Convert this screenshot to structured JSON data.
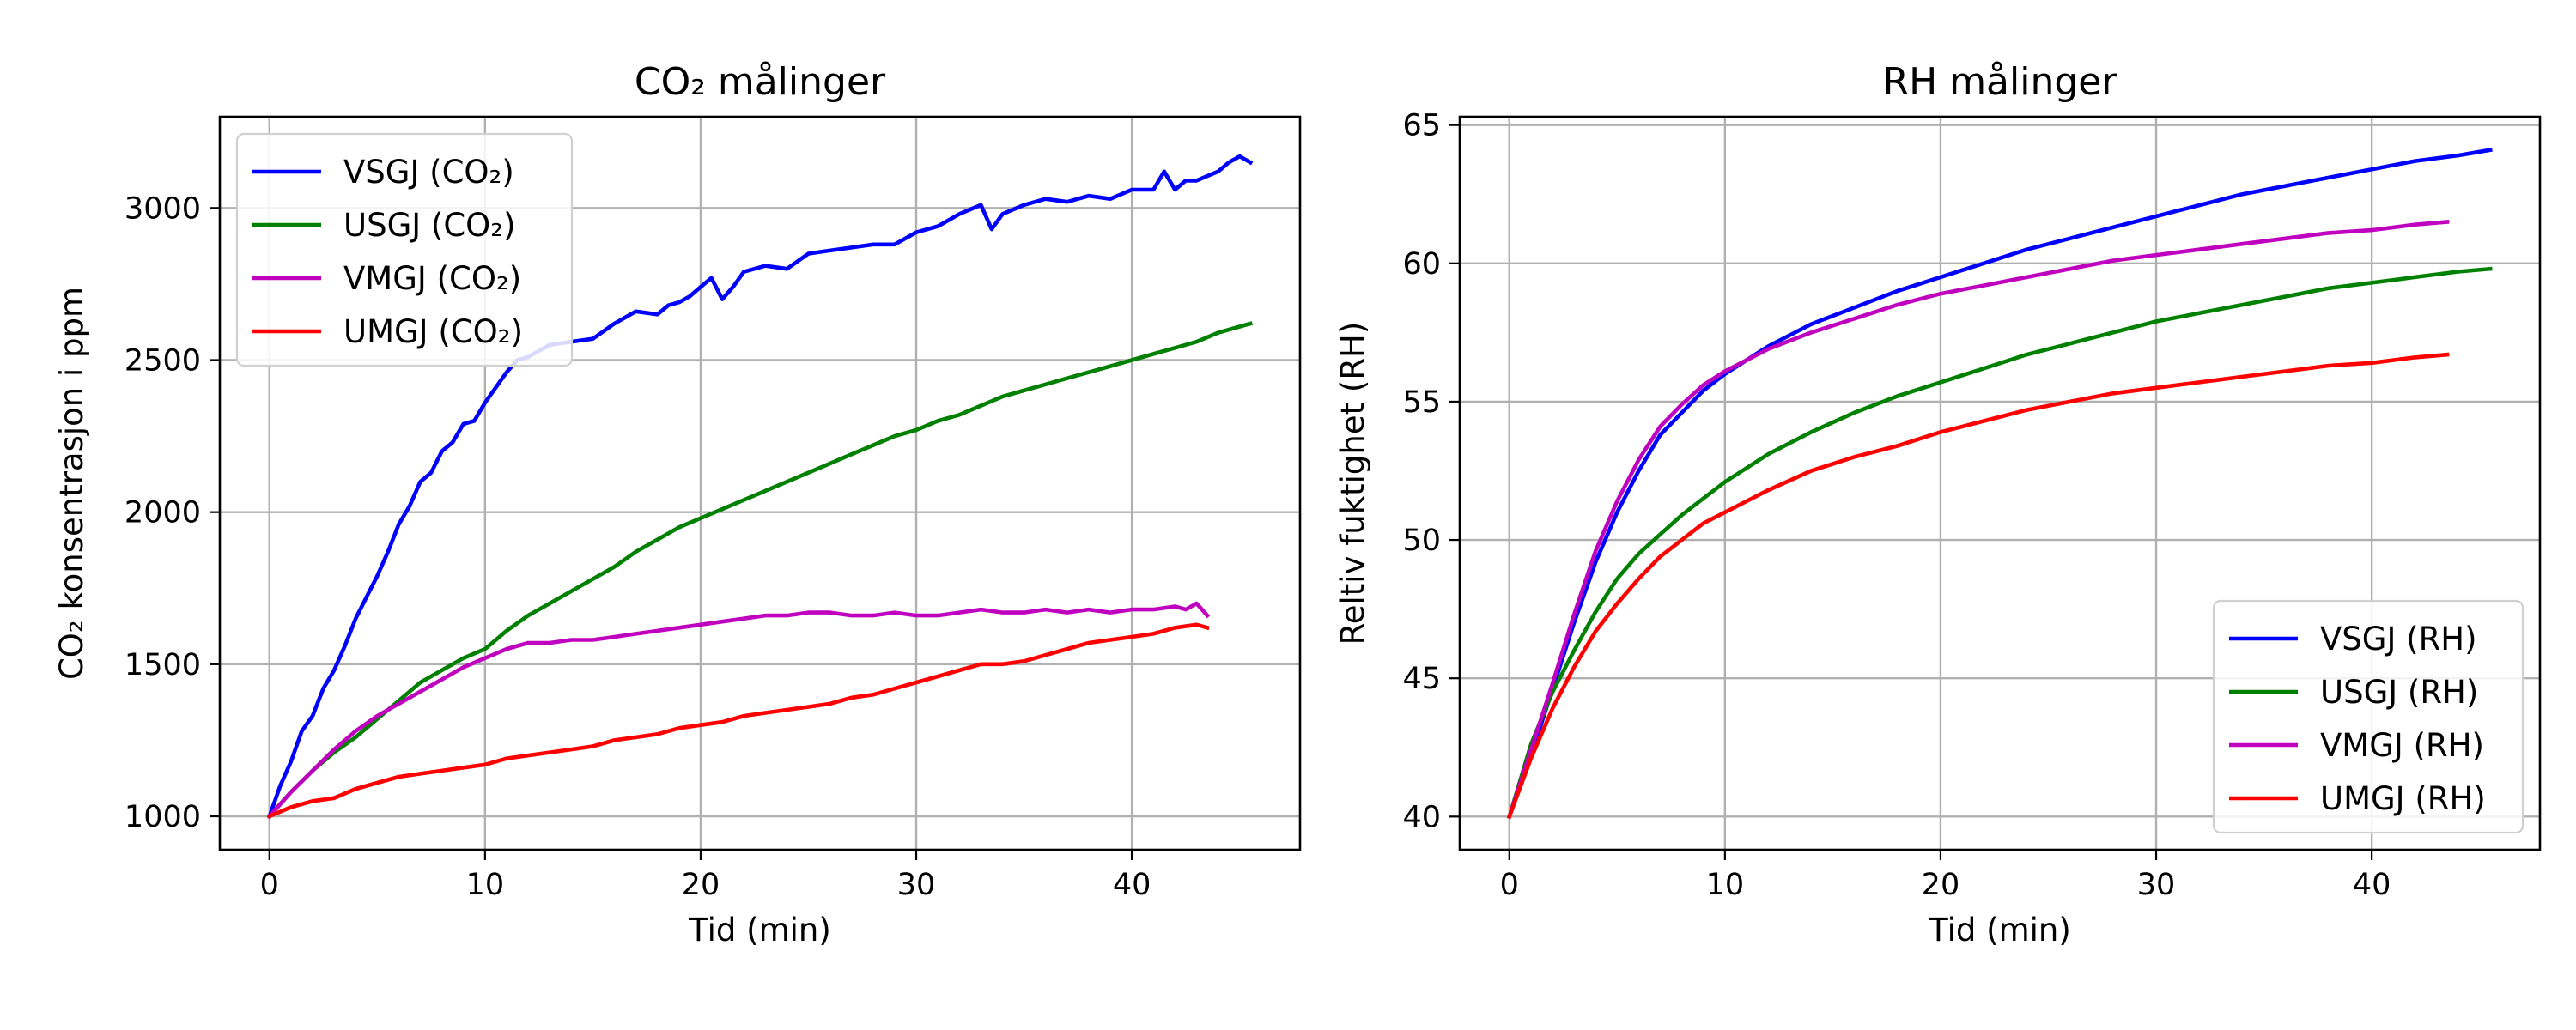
{
  "chart_data": [
    {
      "type": "line",
      "title": "CO₂ målinger",
      "xlabel": "Tid (min)",
      "ylabel": "CO₂ konsentrasjon i ppm",
      "xlim": [
        -2.3,
        47.8
      ],
      "ylim": [
        890,
        3300
      ],
      "xticks": [
        0,
        10,
        20,
        30,
        40
      ],
      "yticks": [
        1000,
        1500,
        2000,
        2500,
        3000
      ],
      "xtick_labels": [
        "0",
        "10",
        "20",
        "30",
        "40"
      ],
      "ytick_labels": [
        "1000",
        "1500",
        "2000",
        "2500",
        "3000"
      ],
      "grid": true,
      "legend": {
        "position": "upper left"
      },
      "series": [
        {
          "name": "VSGJ (CO₂)",
          "color": "#0000ff",
          "x": [
            0,
            0.5,
            1,
            1.5,
            2,
            2.5,
            3,
            3.5,
            4,
            4.5,
            5,
            5.5,
            6,
            6.5,
            7,
            7.5,
            8,
            8.5,
            9,
            9.5,
            10,
            10.5,
            11,
            11.5,
            12,
            12.5,
            13,
            14,
            15,
            16,
            17,
            18,
            18.5,
            19,
            19.5,
            20,
            20.5,
            21,
            21.5,
            22,
            23,
            24,
            25,
            26,
            27,
            28,
            29,
            30,
            31,
            32,
            33,
            33.5,
            34,
            35,
            36,
            37,
            38,
            39,
            40,
            41,
            41.5,
            42,
            42.5,
            43,
            44,
            44.5,
            45,
            45.5
          ],
          "y": [
            1000,
            1100,
            1180,
            1280,
            1330,
            1420,
            1480,
            1560,
            1650,
            1720,
            1790,
            1870,
            1960,
            2020,
            2100,
            2130,
            2200,
            2230,
            2290,
            2300,
            2360,
            2410,
            2460,
            2500,
            2510,
            2530,
            2550,
            2560,
            2570,
            2620,
            2660,
            2650,
            2680,
            2690,
            2710,
            2740,
            2770,
            2700,
            2740,
            2790,
            2810,
            2800,
            2850,
            2860,
            2870,
            2880,
            2880,
            2920,
            2940,
            2980,
            3010,
            2930,
            2980,
            3010,
            3030,
            3020,
            3040,
            3030,
            3060,
            3060,
            3120,
            3060,
            3090,
            3090,
            3120,
            3150,
            3170,
            3150
          ]
        },
        {
          "name": "USGJ (CO₂)",
          "color": "#008000",
          "x": [
            0,
            1,
            2,
            3,
            4,
            5,
            6,
            7,
            8,
            9,
            10,
            11,
            12,
            13,
            14,
            15,
            16,
            17,
            18,
            19,
            20,
            21,
            22,
            23,
            24,
            25,
            26,
            27,
            28,
            29,
            30,
            31,
            32,
            33,
            34,
            35,
            36,
            37,
            38,
            39,
            40,
            41,
            42,
            43,
            44,
            45,
            45.5
          ],
          "y": [
            1000,
            1080,
            1150,
            1210,
            1260,
            1320,
            1380,
            1440,
            1480,
            1520,
            1550,
            1610,
            1660,
            1700,
            1740,
            1780,
            1820,
            1870,
            1910,
            1950,
            1980,
            2010,
            2040,
            2070,
            2100,
            2130,
            2160,
            2190,
            2220,
            2250,
            2270,
            2300,
            2320,
            2350,
            2380,
            2400,
            2420,
            2440,
            2460,
            2480,
            2500,
            2520,
            2540,
            2560,
            2590,
            2610,
            2620
          ]
        },
        {
          "name": "VMGJ (CO₂)",
          "color": "#bf00bf",
          "x": [
            0,
            1,
            2,
            3,
            4,
            5,
            6,
            7,
            8,
            9,
            10,
            11,
            12,
            13,
            14,
            15,
            16,
            17,
            18,
            19,
            20,
            21,
            22,
            23,
            24,
            25,
            26,
            27,
            28,
            29,
            30,
            31,
            32,
            33,
            34,
            35,
            36,
            37,
            38,
            39,
            40,
            41,
            42,
            42.5,
            43,
            43.5
          ],
          "y": [
            1000,
            1080,
            1150,
            1220,
            1280,
            1330,
            1370,
            1410,
            1450,
            1490,
            1520,
            1550,
            1570,
            1570,
            1580,
            1580,
            1590,
            1600,
            1610,
            1620,
            1630,
            1640,
            1650,
            1660,
            1660,
            1670,
            1670,
            1660,
            1660,
            1670,
            1660,
            1660,
            1670,
            1680,
            1670,
            1670,
            1680,
            1670,
            1680,
            1670,
            1680,
            1680,
            1690,
            1680,
            1700,
            1660
          ]
        },
        {
          "name": "UMGJ (CO₂)",
          "color": "#ff0000",
          "x": [
            0,
            1,
            2,
            3,
            4,
            5,
            6,
            7,
            8,
            9,
            10,
            11,
            12,
            13,
            14,
            15,
            16,
            17,
            18,
            19,
            20,
            21,
            22,
            23,
            24,
            25,
            26,
            27,
            28,
            29,
            30,
            31,
            32,
            33,
            34,
            35,
            36,
            37,
            38,
            39,
            40,
            41,
            42,
            43,
            43.5
          ],
          "y": [
            1000,
            1030,
            1050,
            1060,
            1090,
            1110,
            1130,
            1140,
            1150,
            1160,
            1170,
            1190,
            1200,
            1210,
            1220,
            1230,
            1250,
            1260,
            1270,
            1290,
            1300,
            1310,
            1330,
            1340,
            1350,
            1360,
            1370,
            1390,
            1400,
            1420,
            1440,
            1460,
            1480,
            1500,
            1500,
            1510,
            1530,
            1550,
            1570,
            1580,
            1590,
            1600,
            1620,
            1630,
            1620
          ]
        }
      ]
    },
    {
      "type": "line",
      "title": "RH målinger",
      "xlabel": "Tid (min)",
      "ylabel": "Reltiv fuktighet (RH)",
      "xlim": [
        -2.3,
        47.8
      ],
      "ylim": [
        38.8,
        65.3
      ],
      "xticks": [
        0,
        10,
        20,
        30,
        40
      ],
      "yticks": [
        40,
        45,
        50,
        55,
        60,
        65
      ],
      "xtick_labels": [
        "0",
        "10",
        "20",
        "30",
        "40"
      ],
      "ytick_labels": [
        "40",
        "45",
        "50",
        "55",
        "60",
        "65"
      ],
      "grid": true,
      "legend": {
        "position": "lower right"
      },
      "series": [
        {
          "name": "VSGJ (RH)",
          "color": "#0000ff",
          "x": [
            0,
            1,
            2,
            3,
            4,
            5,
            6,
            7,
            8,
            9,
            10,
            12,
            14,
            16,
            18,
            20,
            22,
            24,
            26,
            28,
            30,
            32,
            34,
            36,
            38,
            40,
            42,
            44,
            45.5
          ],
          "y": [
            40,
            42.2,
            44.6,
            47,
            49.2,
            51,
            52.5,
            53.8,
            54.6,
            55.4,
            56,
            57,
            57.8,
            58.4,
            59,
            59.5,
            60,
            60.5,
            60.9,
            61.3,
            61.7,
            62.1,
            62.5,
            62.8,
            63.1,
            63.4,
            63.7,
            63.9,
            64.1
          ]
        },
        {
          "name": "USGJ (RH)",
          "color": "#008000",
          "x": [
            0,
            1,
            2,
            3,
            4,
            5,
            6,
            7,
            8,
            9,
            10,
            12,
            14,
            16,
            18,
            20,
            22,
            24,
            26,
            28,
            30,
            32,
            34,
            36,
            38,
            40,
            42,
            44,
            45.5
          ],
          "y": [
            40,
            42.6,
            44.5,
            46,
            47.4,
            48.6,
            49.5,
            50.2,
            50.9,
            51.5,
            52.1,
            53.1,
            53.9,
            54.6,
            55.2,
            55.7,
            56.2,
            56.7,
            57.1,
            57.5,
            57.9,
            58.2,
            58.5,
            58.8,
            59.1,
            59.3,
            59.5,
            59.7,
            59.8
          ]
        },
        {
          "name": "VMGJ (RH)",
          "color": "#bf00bf",
          "x": [
            0,
            1,
            2,
            3,
            4,
            5,
            6,
            7,
            8,
            9,
            10,
            12,
            14,
            16,
            18,
            20,
            22,
            24,
            26,
            28,
            30,
            32,
            34,
            36,
            38,
            40,
            42,
            43.5
          ],
          "y": [
            40,
            42.4,
            44.8,
            47.3,
            49.6,
            51.4,
            52.9,
            54.1,
            54.9,
            55.6,
            56.1,
            56.9,
            57.5,
            58,
            58.5,
            58.9,
            59.2,
            59.5,
            59.8,
            60.1,
            60.3,
            60.5,
            60.7,
            60.9,
            61.1,
            61.2,
            61.4,
            61.5
          ]
        },
        {
          "name": "UMGJ (RH)",
          "color": "#ff0000",
          "x": [
            0,
            1,
            2,
            3,
            4,
            5,
            6,
            7,
            8,
            9,
            10,
            12,
            14,
            16,
            18,
            20,
            22,
            24,
            26,
            28,
            30,
            32,
            34,
            36,
            38,
            40,
            42,
            43.5
          ],
          "y": [
            40,
            42.1,
            43.9,
            45.4,
            46.7,
            47.7,
            48.6,
            49.4,
            50,
            50.6,
            51,
            51.8,
            52.5,
            53,
            53.4,
            53.9,
            54.3,
            54.7,
            55,
            55.3,
            55.5,
            55.7,
            55.9,
            56.1,
            56.3,
            56.4,
            56.6,
            56.7
          ]
        }
      ]
    }
  ]
}
